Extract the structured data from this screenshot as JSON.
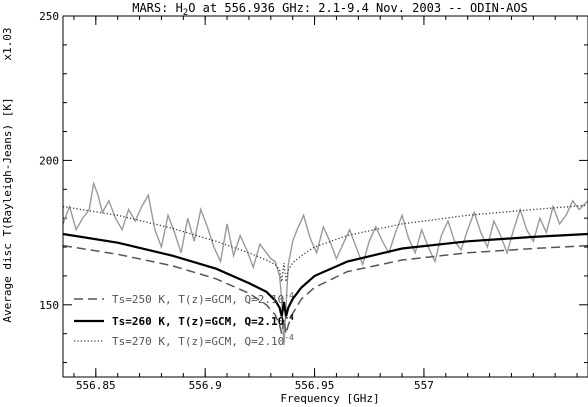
{
  "chart_data": {
    "type": "line",
    "title_main": "MARS: H",
    "title_sub": "2",
    "title_rest": "O at 556.936 GHz: 2.1-9.4 Nov. 2003 -- ODIN-AOS",
    "xlabel": "Frequency [GHz]",
    "ylabel": "Average disc T(Rayleigh-Jeans) [K]",
    "scale_note": "x1.03",
    "xlim": [
      556.835,
      557.075
    ],
    "ylim": [
      125,
      250
    ],
    "x_ticks": [
      {
        "value": 556.85,
        "label": "556.85"
      },
      {
        "value": 556.9,
        "label": "556.9"
      },
      {
        "value": 556.95,
        "label": "556.95"
      },
      {
        "value": 557.0,
        "label": "557"
      }
    ],
    "y_ticks": [
      {
        "value": 150,
        "label": "150"
      },
      {
        "value": 200,
        "label": "200"
      },
      {
        "value": 250,
        "label": "250"
      }
    ],
    "line_center": 556.936,
    "observed": {
      "color": "#9a9a9a",
      "x": [
        556.835,
        556.838,
        556.841,
        556.844,
        556.847,
        556.849,
        556.851,
        556.853,
        556.856,
        556.859,
        556.862,
        556.865,
        556.868,
        556.871,
        556.874,
        556.877,
        556.88,
        556.883,
        556.886,
        556.889,
        556.892,
        556.895,
        556.898,
        556.901,
        556.904,
        556.907,
        556.91,
        556.913,
        556.916,
        556.919,
        556.922,
        556.925,
        556.928,
        556.93,
        556.932,
        556.934,
        556.935,
        556.936,
        556.937,
        556.938,
        556.94,
        556.942,
        556.945,
        556.948,
        556.951,
        556.954,
        556.957,
        556.96,
        556.963,
        556.966,
        556.969,
        556.972,
        556.975,
        556.978,
        556.981,
        556.984,
        556.987,
        556.99,
        556.993,
        556.996,
        556.999,
        557.002,
        557.005,
        557.008,
        557.011,
        557.014,
        557.017,
        557.02,
        557.023,
        557.026,
        557.029,
        557.032,
        557.035,
        557.038,
        557.041,
        557.044,
        557.047,
        557.05,
        557.053,
        557.056,
        557.059,
        557.062,
        557.065,
        557.068,
        557.071,
        557.075
      ],
      "y": [
        178,
        184,
        176,
        180,
        183,
        192,
        188,
        182,
        186,
        180,
        176,
        183,
        179,
        184,
        188,
        176,
        170,
        181,
        175,
        168,
        180,
        172,
        183,
        177,
        170,
        165,
        178,
        167,
        174,
        169,
        163,
        171,
        168,
        166,
        165,
        160,
        152,
        136,
        150,
        164,
        172,
        176,
        181,
        173,
        168,
        177,
        172,
        166,
        171,
        176,
        170,
        164,
        172,
        177,
        172,
        168,
        175,
        181,
        173,
        168,
        176,
        170,
        165,
        174,
        179,
        172,
        169,
        176,
        182,
        175,
        170,
        179,
        174,
        168,
        176,
        183,
        176,
        172,
        180,
        175,
        184,
        178,
        181,
        186,
        183,
        186
      ]
    },
    "series": [
      {
        "name": "Ts=250 K, T(z)=GCM, Q=2.10",
        "exp": "-4",
        "style": "dashed",
        "color": "#555555",
        "width": 1.5,
        "x": [
          556.835,
          556.86,
          556.885,
          556.905,
          556.92,
          556.928,
          556.932,
          556.934,
          556.935,
          556.936,
          556.937,
          556.938,
          556.94,
          556.944,
          556.95,
          556.965,
          556.99,
          557.02,
          557.05,
          557.075
        ],
        "y": [
          170.5,
          167.5,
          163.5,
          159,
          154,
          150,
          146.5,
          143,
          140,
          145,
          140,
          143,
          147,
          152,
          156,
          161.5,
          165.5,
          168,
          169.5,
          170.5
        ]
      },
      {
        "name": "Ts=260 K, T(z)=GCM, Q=2.10",
        "exp": "-4",
        "style": "solid",
        "color": "#000000",
        "width": 2.2,
        "x": [
          556.835,
          556.86,
          556.885,
          556.905,
          556.92,
          556.928,
          556.932,
          556.934,
          556.935,
          556.936,
          556.937,
          556.938,
          556.94,
          556.944,
          556.95,
          556.965,
          556.99,
          557.02,
          557.05,
          557.075
        ],
        "y": [
          174.5,
          171.5,
          167,
          162.5,
          157.5,
          154.5,
          151.5,
          149,
          146,
          151,
          146,
          149,
          152,
          156,
          160,
          165,
          169.5,
          172,
          173.5,
          174.5
        ]
      },
      {
        "name": "Ts=270 K, T(z)=GCM, Q=2.10",
        "exp": "-4",
        "style": "dotted",
        "color": "#333333",
        "width": 1.3,
        "x": [
          556.835,
          556.86,
          556.885,
          556.905,
          556.92,
          556.928,
          556.932,
          556.934,
          556.935,
          556.936,
          556.937,
          556.938,
          556.94,
          556.944,
          556.95,
          556.965,
          556.99,
          557.02,
          557.05,
          557.075
        ],
        "y": [
          184,
          181,
          176.5,
          172,
          168,
          165.5,
          164,
          162,
          158,
          164.5,
          158,
          162,
          164.5,
          167,
          170,
          174,
          178,
          181,
          183,
          184.5
        ]
      }
    ]
  }
}
